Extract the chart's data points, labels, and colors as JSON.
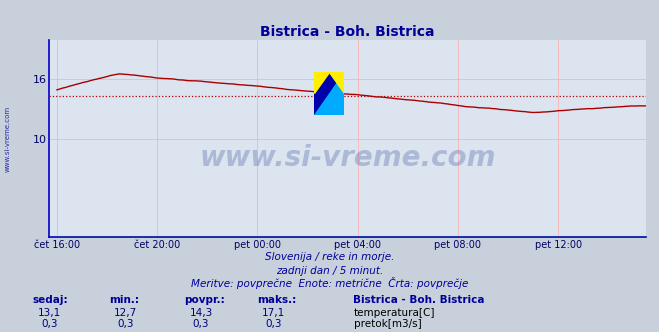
{
  "title": "Bistrica - Boh. Bistrica",
  "title_color": "#000099",
  "bg_color": "#c8d0dc",
  "plot_bg_color": "#dce4f0",
  "grid_color": "#ffaaaa",
  "xlabel_color": "#000066",
  "ylabel_ticks": [
    10,
    16
  ],
  "ylim": [
    0,
    20
  ],
  "avg_line_value": 14.3,
  "avg_line_color": "#aa0000",
  "temp_line_color": "#aa0000",
  "flow_line_color": "#007700",
  "watermark_text": "www.si-vreme.com",
  "watermark_color": "#1a3a8a",
  "watermark_alpha": 0.25,
  "footer_line1": "Slovenija / reke in morje.",
  "footer_line2": "zadnji dan / 5 minut.",
  "footer_line3": "Meritve: povprečne  Enote: metrične  Črta: povprečje",
  "footer_color": "#000099",
  "stats_label_color": "#000099",
  "stats_value_color": "#000077",
  "left_label": "www.si-vreme.com",
  "left_label_color": "#000099",
  "x_tick_labels": [
    "čet 16:00",
    "čet 20:00",
    "pet 00:00",
    "pet 04:00",
    "pet 08:00",
    "pet 12:00"
  ],
  "x_tick_positions": [
    0,
    4,
    8,
    12,
    16,
    20
  ],
  "stats_sedaj": "13,1",
  "stats_min": "12,7",
  "stats_povpr": "14,3",
  "stats_maks": "17,1",
  "stats2_sedaj": "0,3",
  "stats2_min": "0,3",
  "stats2_povpr": "0,3",
  "stats2_maks": "0,3"
}
